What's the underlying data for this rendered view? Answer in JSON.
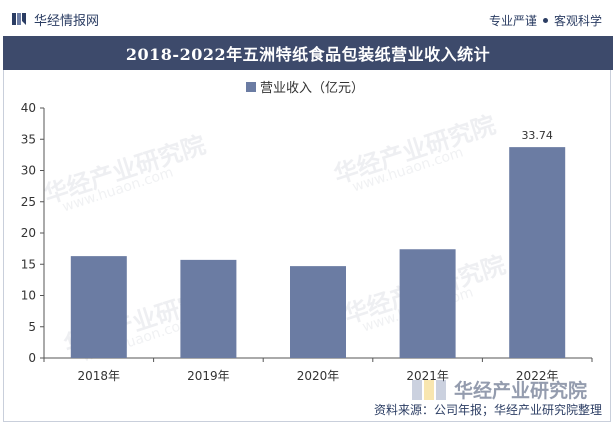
{
  "header": {
    "brand": "华经情报网",
    "tagline_left": "专业严谨",
    "tagline_right": "客观科学"
  },
  "watermark": {
    "text": "华经产业研究院",
    "sub": "www.huaon.com"
  },
  "footer": {
    "logo_text": "华经产业研究院",
    "source": "资料来源：公司年报；华经产业研究院整理"
  },
  "colors": {
    "title_bg": "#3d4a6b",
    "bar": "#6b7ca3",
    "text": "#333333"
  },
  "chart_data": {
    "type": "bar",
    "title": "2018-2022年五洲特纸食品包装纸营业收入统计",
    "categories": [
      "2018年",
      "2019年",
      "2020年",
      "2021年",
      "2022年"
    ],
    "series": [
      {
        "name": "营业收入（亿元）",
        "values": [
          16.3,
          15.7,
          14.7,
          17.4,
          33.74
        ]
      }
    ],
    "data_labels": {
      "4": "33.74"
    },
    "ylim": [
      0,
      40
    ],
    "yticks": [
      0,
      5,
      10,
      15,
      20,
      25,
      30,
      35,
      40
    ],
    "grid": false,
    "legend_position": "top-center",
    "xlabel": "",
    "ylabel": ""
  }
}
